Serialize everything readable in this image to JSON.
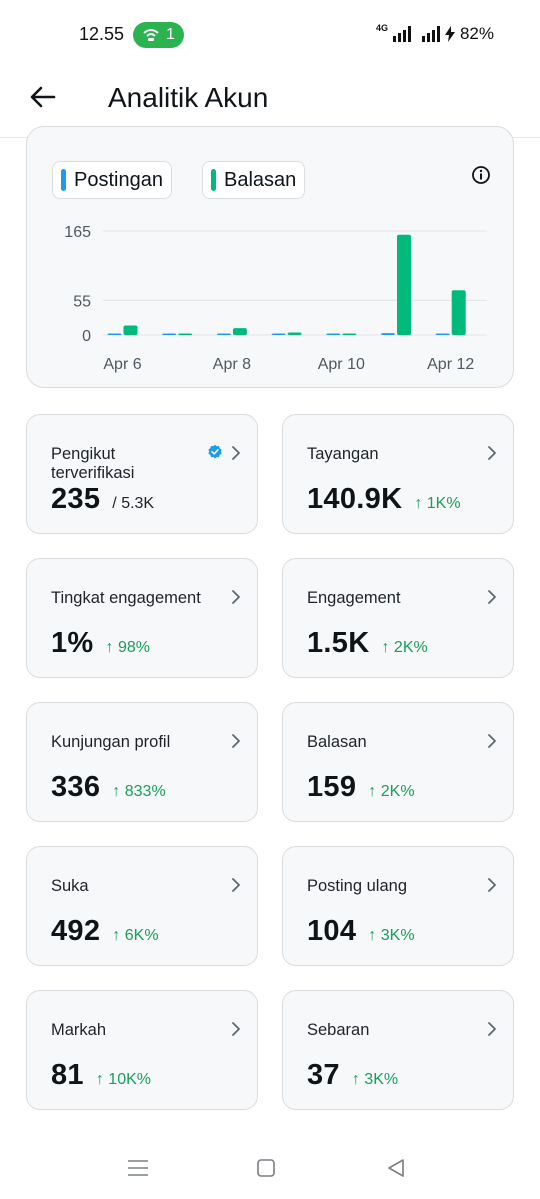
{
  "status_bar": {
    "time": "12.55",
    "hotspot_count": "1",
    "network": "4G",
    "battery": "82%"
  },
  "header": {
    "title": "Analitik Akun"
  },
  "chart": {
    "legend": [
      {
        "name": "Postingan",
        "color": "#1d9bf0"
      },
      {
        "name": "Balasan",
        "color": "#00ba7c"
      }
    ]
  },
  "chart_data": {
    "type": "bar",
    "categories": [
      "Apr 6",
      "Apr 7",
      "Apr 8",
      "Apr 9",
      "Apr 10",
      "Apr 11",
      "Apr 12"
    ],
    "x_tick_labels": [
      "Apr 6",
      "Apr 8",
      "Apr 10",
      "Apr 12"
    ],
    "y_tick_labels": [
      "165",
      "55",
      "0"
    ],
    "y_ticks": [
      165,
      55,
      0
    ],
    "ylim": [
      0,
      165
    ],
    "grid": true,
    "legend_position": "top-left",
    "series": [
      {
        "name": "Postingan",
        "color": "#1d9bf0",
        "values": [
          1,
          1,
          1,
          0,
          0,
          3,
          2
        ]
      },
      {
        "name": "Balasan",
        "color": "#00ba7c",
        "values": [
          15,
          0,
          11,
          4,
          1,
          159,
          71
        ]
      }
    ]
  },
  "metrics": [
    {
      "label": "Pengikut terverifikasi",
      "value": "235",
      "total": "/ 5.3K",
      "verified": true
    },
    {
      "label": "Tayangan",
      "value": "140.9K",
      "delta": "↑ 1K%"
    },
    {
      "label": "Tingkat engagement",
      "value": "1%",
      "delta": "↑ 98%"
    },
    {
      "label": "Engagement",
      "value": "1.5K",
      "delta": "↑ 2K%"
    },
    {
      "label": "Kunjungan profil",
      "value": "336",
      "delta": "↑ 833%"
    },
    {
      "label": "Balasan",
      "value": "159",
      "delta": "↑ 2K%"
    },
    {
      "label": "Suka",
      "value": "492",
      "delta": "↑ 6K%"
    },
    {
      "label": "Posting ulang",
      "value": "104",
      "delta": "↑ 3K%"
    },
    {
      "label": "Markah",
      "value": "81",
      "delta": "↑ 10K%"
    },
    {
      "label": "Sebaran",
      "value": "37",
      "delta": "↑ 3K%"
    }
  ]
}
